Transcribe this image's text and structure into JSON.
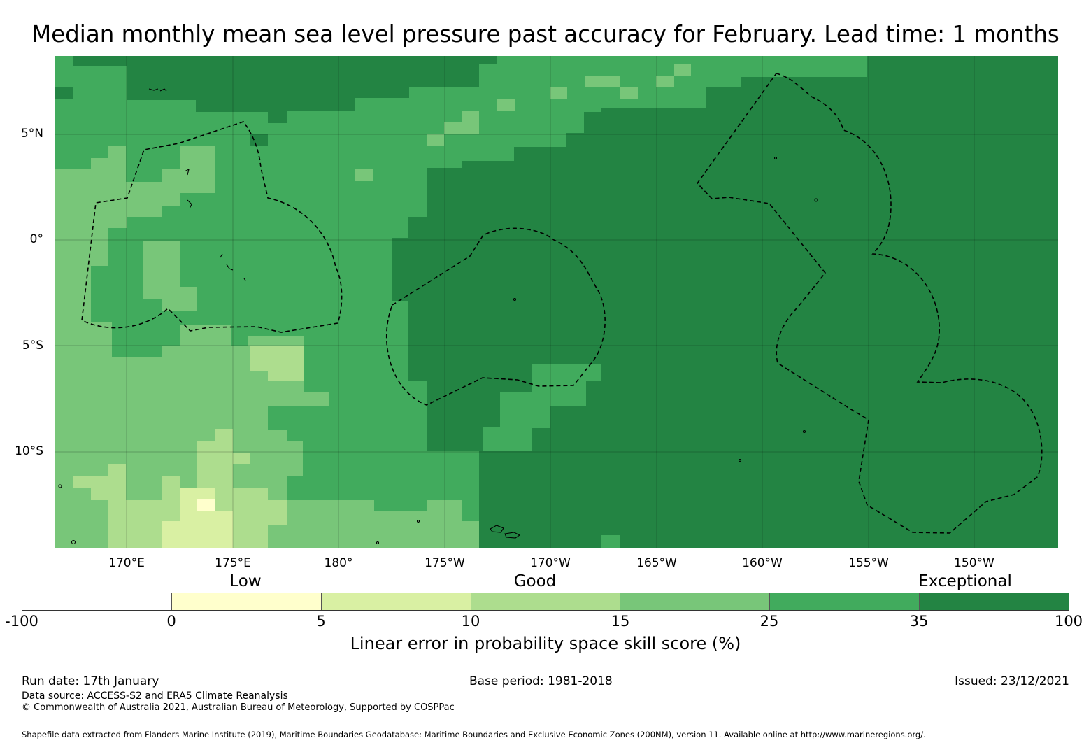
{
  "title": "Median monthly mean sea level pressure past accuracy for February. Lead time: 1 months",
  "map": {
    "lat_labels": [
      "5°N",
      "0°",
      "5°S",
      "10°S"
    ],
    "lon_labels": [
      "170°E",
      "175°E",
      "180°",
      "175°W",
      "170°W",
      "165°W",
      "160°W",
      "155°W",
      "150°W"
    ]
  },
  "colorbar": {
    "categories": [
      "Low",
      "Good",
      "Exceptional"
    ],
    "ticks": [
      "-100",
      "0",
      "5",
      "10",
      "15",
      "25",
      "35",
      "100"
    ],
    "colors": [
      "#ffffff",
      "#ffffcc",
      "#d9f0a3",
      "#addd8e",
      "#78c679",
      "#41ab5d",
      "#238443"
    ],
    "label": "Linear error in probability space skill score (%)"
  },
  "footer": {
    "run_date": "Run date: 17th January",
    "base_period": "Base period: 1981-2018",
    "issued": "Issued: 23/12/2021",
    "data_source": "Data source: ACCESS-S2 and ERA5 Climate Reanalysis",
    "copyright": "© Commonwealth of Australia 2021, Australian Bureau of Meteorology, Supported by COSPPac",
    "shapefile": "Shapefile data extracted from Flanders Marine Institute (2019), Maritime Boundaries Geodatabase: Maritime Boundaries and Exclusive Economic Zones (200NM), version 11. Available online at http://www.marineregions.org/."
  }
}
